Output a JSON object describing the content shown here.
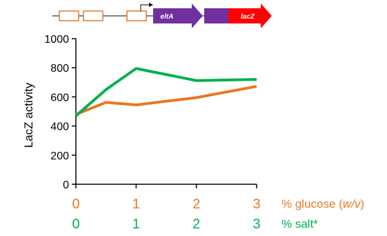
{
  "construct": {
    "genes": [
      {
        "label": "eltA",
        "color": "#7030a0"
      },
      {
        "label": "lacZ",
        "color": "#ff0000"
      }
    ],
    "box_color": "#e87722",
    "fusion_color": "#7030a0"
  },
  "chart_data": {
    "type": "line",
    "ylabel": "LacZ activity",
    "ylim": [
      0,
      1000
    ],
    "yticks": [
      "0",
      "200",
      "400",
      "600",
      "800",
      "1000"
    ],
    "xlim": [
      0,
      3
    ],
    "grid": false,
    "x_axes": [
      {
        "ticks": [
          "0",
          "1",
          "2",
          "3"
        ],
        "label_prefix": "% glucose (",
        "label_italic": "w/v",
        "label_suffix": ")",
        "color": "#e87722"
      },
      {
        "ticks": [
          "0",
          "1",
          "2",
          "3"
        ],
        "label_prefix": "% salt*",
        "label_italic": "",
        "label_suffix": "",
        "color": "#00b050"
      }
    ],
    "series": [
      {
        "color": "#e87722",
        "x": [
          0,
          0.5,
          1,
          2,
          3
        ],
        "y": [
          480,
          562,
          545,
          595,
          672
        ]
      },
      {
        "color": "#00b050",
        "x": [
          0,
          0.5,
          1,
          2,
          3
        ],
        "y": [
          470,
          650,
          795,
          712,
          720
        ]
      }
    ]
  }
}
